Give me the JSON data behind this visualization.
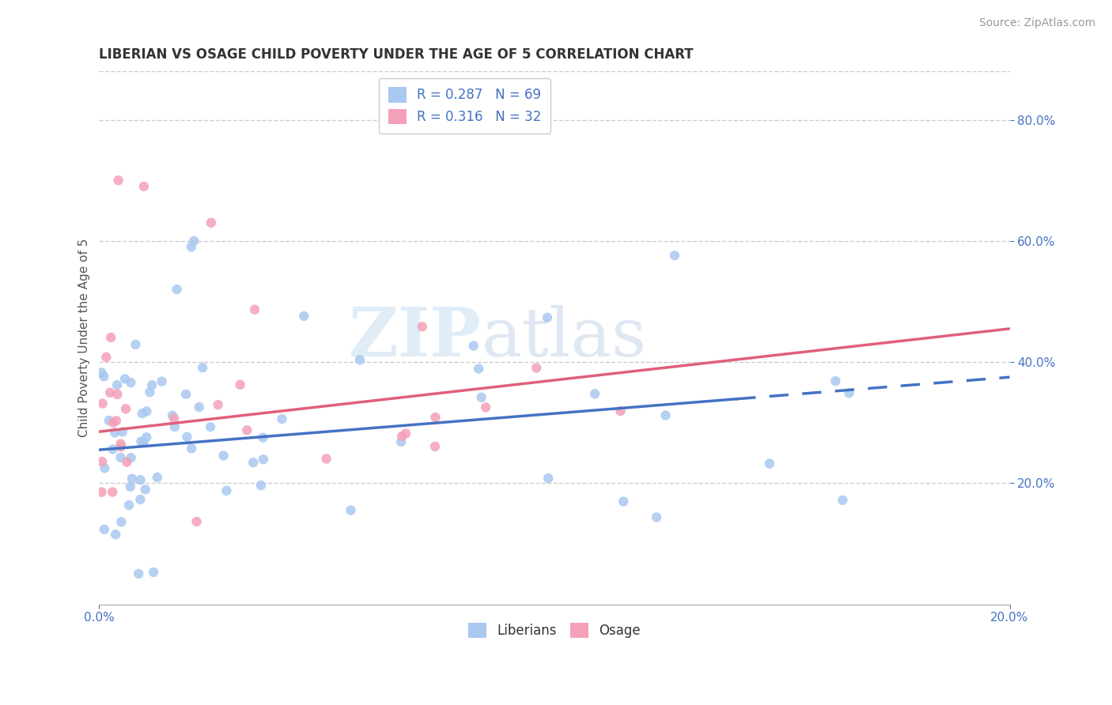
{
  "title": "LIBERIAN VS OSAGE CHILD POVERTY UNDER THE AGE OF 5 CORRELATION CHART",
  "source": "Source: ZipAtlas.com",
  "ylabel": "Child Poverty Under the Age of 5",
  "R_liberian": 0.287,
  "N_liberian": 69,
  "R_osage": 0.316,
  "N_osage": 32,
  "liberian_color": "#a8c8f0",
  "osage_color": "#f4a0b8",
  "trendline_liberian_color": "#4472c4",
  "trendline_osage_color": "#e0607a",
  "background_color": "#ffffff",
  "grid_color": "#cccccc",
  "watermark_zip": "ZIP",
  "watermark_atlas": "atlas",
  "xmin": 0.0,
  "xmax": 0.2,
  "ymin": 0.0,
  "ymax": 0.88,
  "yticks": [
    0.2,
    0.4,
    0.6,
    0.8
  ],
  "xticks": [
    0.0,
    0.2
  ],
  "title_fontsize": 12,
  "source_fontsize": 10,
  "tick_fontsize": 11,
  "tick_color": "#4472c4"
}
